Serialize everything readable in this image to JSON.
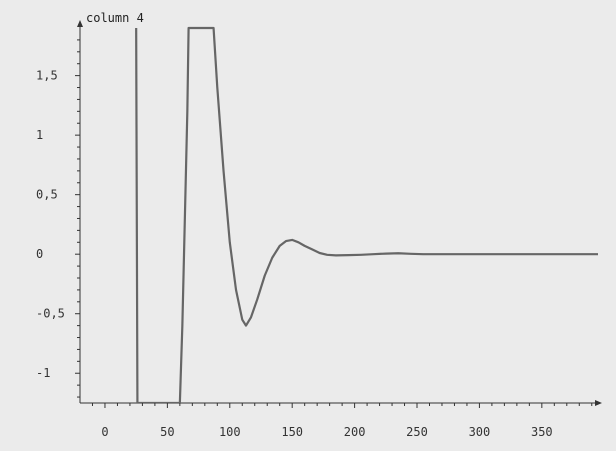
{
  "chart_data": {
    "type": "line",
    "title": "",
    "ylabel": "column 4",
    "xlabel": "",
    "xlim": [
      -20,
      395
    ],
    "ylim": [
      -1.25,
      1.9
    ],
    "x_ticks": [
      0,
      50,
      100,
      150,
      200,
      250,
      300,
      350
    ],
    "x_tick_labels": [
      "0",
      "50",
      "100",
      "150",
      "200",
      "250",
      "300",
      "350"
    ],
    "y_ticks": [
      -1,
      -0.5,
      0,
      0.5,
      1,
      1.5
    ],
    "y_tick_labels": [
      "-1",
      "-0,5",
      "0",
      "0,5",
      "1",
      "1,5"
    ],
    "grid": false,
    "series": [
      {
        "color": "#666666",
        "points": [
          [
            25,
            1.9
          ],
          [
            26,
            -1.25
          ],
          [
            60,
            -1.25
          ],
          [
            62,
            -0.6
          ],
          [
            64,
            0.3
          ],
          [
            66,
            1.2
          ],
          [
            67,
            1.9
          ],
          [
            87,
            1.9
          ],
          [
            90,
            1.4
          ],
          [
            95,
            0.7
          ],
          [
            100,
            0.1
          ],
          [
            105,
            -0.3
          ],
          [
            110,
            -0.55
          ],
          [
            113,
            -0.6
          ],
          [
            117,
            -0.53
          ],
          [
            122,
            -0.38
          ],
          [
            128,
            -0.18
          ],
          [
            134,
            -0.03
          ],
          [
            140,
            0.07
          ],
          [
            145,
            0.11
          ],
          [
            150,
            0.12
          ],
          [
            155,
            0.1
          ],
          [
            160,
            0.07
          ],
          [
            166,
            0.04
          ],
          [
            172,
            0.01
          ],
          [
            178,
            -0.005
          ],
          [
            185,
            -0.01
          ],
          [
            195,
            -0.008
          ],
          [
            205,
            -0.005
          ],
          [
            215,
            0.0
          ],
          [
            225,
            0.005
          ],
          [
            235,
            0.008
          ],
          [
            245,
            0.003
          ],
          [
            255,
            0.0
          ],
          [
            280,
            0.0
          ],
          [
            320,
            0.0
          ],
          [
            360,
            0.0
          ],
          [
            395,
            0.0
          ]
        ]
      }
    ],
    "axis_color": "#333333",
    "background": "#ebebeb"
  }
}
